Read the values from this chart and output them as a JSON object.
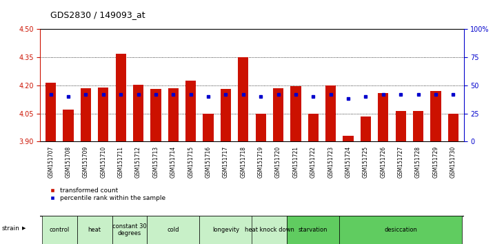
{
  "title": "GDS2830 / 149093_at",
  "samples": [
    "GSM151707",
    "GSM151708",
    "GSM151709",
    "GSM151710",
    "GSM151711",
    "GSM151712",
    "GSM151713",
    "GSM151714",
    "GSM151715",
    "GSM151716",
    "GSM151717",
    "GSM151718",
    "GSM151719",
    "GSM151720",
    "GSM151721",
    "GSM151722",
    "GSM151723",
    "GSM151724",
    "GSM151725",
    "GSM151726",
    "GSM151727",
    "GSM151728",
    "GSM151729",
    "GSM151730"
  ],
  "transformed_count": [
    4.215,
    4.07,
    4.185,
    4.19,
    4.37,
    4.205,
    4.18,
    4.185,
    4.225,
    4.05,
    4.18,
    4.35,
    4.048,
    4.185,
    4.195,
    4.05,
    4.2,
    3.93,
    4.035,
    4.16,
    4.065,
    4.065,
    4.17,
    4.05
  ],
  "percentile_rank": [
    42,
    40,
    42,
    42,
    42,
    42,
    42,
    42,
    42,
    40,
    42,
    42,
    40,
    42,
    42,
    40,
    42,
    38,
    40,
    42,
    42,
    42,
    42,
    42
  ],
  "groups": [
    {
      "name": "control",
      "start": 0,
      "end": 1,
      "color": "#c8f0c8"
    },
    {
      "name": "heat",
      "start": 2,
      "end": 3,
      "color": "#c8f0c8"
    },
    {
      "name": "constant 30\ndegrees",
      "start": 4,
      "end": 5,
      "color": "#c8f0c8"
    },
    {
      "name": "cold",
      "start": 6,
      "end": 8,
      "color": "#c8f0c8"
    },
    {
      "name": "longevity",
      "start": 9,
      "end": 11,
      "color": "#c8f0c8"
    },
    {
      "name": "heat knock down",
      "start": 12,
      "end": 13,
      "color": "#c8f0c8"
    },
    {
      "name": "starvation",
      "start": 14,
      "end": 16,
      "color": "#60cc60"
    },
    {
      "name": "desiccation",
      "start": 17,
      "end": 23,
      "color": "#60cc60"
    }
  ],
  "bar_color": "#cc1100",
  "percentile_color": "#0000cc",
  "ylim_left": [
    3.9,
    4.5
  ],
  "ylim_right": [
    0,
    100
  ],
  "yticks_left": [
    3.9,
    4.05,
    4.2,
    4.35,
    4.5
  ],
  "yticks_right": [
    0,
    25,
    50,
    75,
    100
  ],
  "ytick_labels_right": [
    "0",
    "25",
    "50",
    "75",
    "100%"
  ],
  "background_color": "#ffffff"
}
